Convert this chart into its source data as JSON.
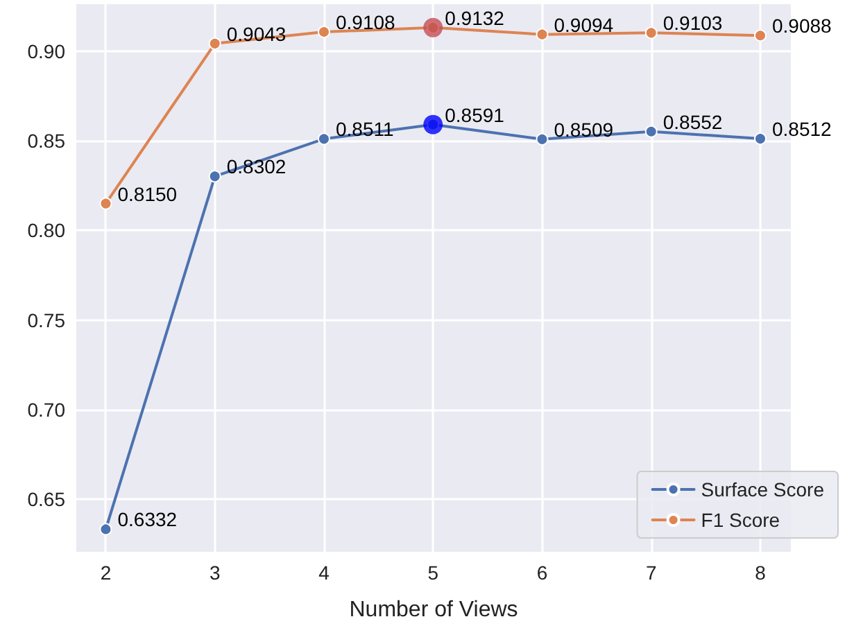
{
  "chart_data": {
    "type": "line",
    "xlabel": "Number of Views",
    "x": [
      2,
      3,
      4,
      5,
      6,
      7,
      8
    ],
    "series": [
      {
        "name": "Surface Score",
        "color": "#4c72b0",
        "values": [
          0.6332,
          0.8302,
          0.8511,
          0.8591,
          0.8509,
          0.8552,
          0.8512
        ],
        "value_labels": [
          "0.6332",
          "0.8302",
          "0.8511",
          "0.8591",
          "0.8509",
          "0.8552",
          "0.8512"
        ]
      },
      {
        "name": "F1 Score",
        "color": "#dd8452",
        "values": [
          0.815,
          0.9043,
          0.9108,
          0.9132,
          0.9094,
          0.9103,
          0.9088
        ],
        "value_labels": [
          "0.8150",
          "0.9043",
          "0.9108",
          "0.9132",
          "0.9094",
          "0.9103",
          "0.9088"
        ]
      },
      {
        "type": "scatter",
        "color": "#0000ff",
        "x": [
          5
        ],
        "values": [
          0.8591
        ]
      },
      {
        "type": "scatter",
        "color": "#c44e52",
        "x": [
          5
        ],
        "values": [
          0.9132
        ]
      }
    ],
    "xlim": [
      1.73,
      8.28
    ],
    "xticks": [
      2,
      3,
      4,
      5,
      6,
      7,
      8
    ],
    "ylim": [
      0.6206,
      0.9263
    ],
    "yticks": [
      0.65,
      {
        "value": 0.7,
        "label": "0.70"
      },
      0.75,
      {
        "value": 0.8,
        "label": "0.80"
      },
      0.85,
      {
        "value": 0.9,
        "label": "0.90"
      }
    ],
    "grid": true,
    "legend": "bottom right",
    "marker": "circle",
    "line_style": "solid"
  }
}
